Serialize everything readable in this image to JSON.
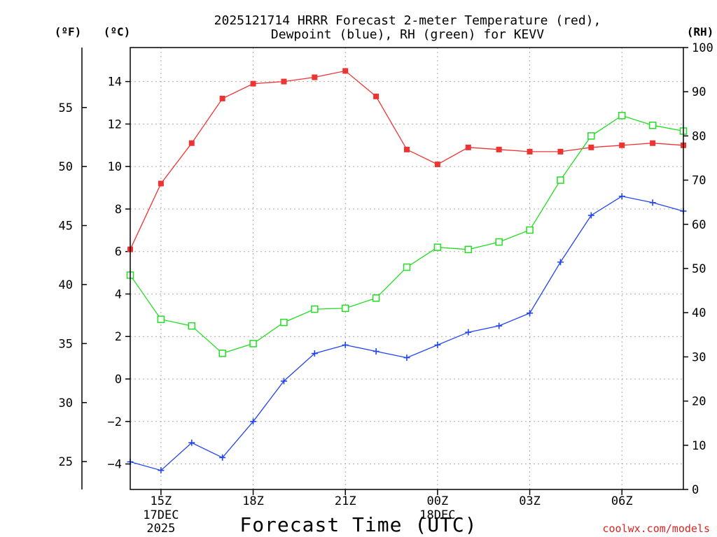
{
  "chart_data": {
    "type": "line",
    "title_line1": "2025121714 HRRR Forecast 2-meter Temperature (red),",
    "title_line2": "Dewpoint (blue), RH (green) for KEVV",
    "xlabel": "Forecast Time (UTC)",
    "watermark": "coolwx.com/models",
    "axis_labels": {
      "fahrenheit": "(ºF)",
      "celsius": "(ºC)",
      "rh": "(RH)"
    },
    "x_hours": [
      14,
      15,
      16,
      17,
      18,
      19,
      20,
      21,
      22,
      23,
      24,
      25,
      26,
      27,
      28,
      29,
      30,
      31,
      32
    ],
    "xlim": [
      14,
      32
    ],
    "x_ticks": [
      {
        "hour": 15,
        "label": "15Z",
        "sub1": "17DEC",
        "sub2": "2025"
      },
      {
        "hour": 18,
        "label": "18Z",
        "sub1": "",
        "sub2": ""
      },
      {
        "hour": 21,
        "label": "21Z",
        "sub1": "",
        "sub2": ""
      },
      {
        "hour": 24,
        "label": "00Z",
        "sub1": "18DEC",
        "sub2": ""
      },
      {
        "hour": 27,
        "label": "03Z",
        "sub1": "",
        "sub2": ""
      },
      {
        "hour": 30,
        "label": "06Z",
        "sub1": "",
        "sub2": ""
      }
    ],
    "ylim_c": [
      -5.2,
      15.6
    ],
    "y_ticks_c": [
      -4,
      -2,
      0,
      2,
      4,
      6,
      8,
      10,
      12,
      14
    ],
    "y_ticks_f": [
      25,
      30,
      35,
      40,
      45,
      50,
      55
    ],
    "ylim_rh": [
      0,
      100
    ],
    "y_ticks_rh": [
      0,
      10,
      20,
      30,
      40,
      50,
      60,
      70,
      80,
      90,
      100
    ],
    "series": [
      {
        "name": "Temperature",
        "unit": "C",
        "color": "#ee3333",
        "marker": "filled-square",
        "values": [
          6.1,
          9.2,
          11.1,
          13.2,
          13.9,
          14.0,
          14.2,
          14.5,
          13.3,
          10.8,
          10.1,
          10.9,
          10.8,
          10.7,
          10.7,
          10.9,
          11.0,
          11.1,
          11.0
        ]
      },
      {
        "name": "Dewpoint",
        "unit": "C",
        "color": "#2244ee",
        "marker": "plus",
        "values": [
          -3.9,
          -4.3,
          -3.0,
          -3.7,
          -2.0,
          -0.1,
          1.2,
          1.6,
          1.3,
          1.0,
          1.6,
          2.2,
          2.5,
          3.1,
          5.5,
          7.7,
          8.6,
          8.3,
          7.9
        ]
      },
      {
        "name": "RH",
        "unit": "%",
        "color": "#22dd22",
        "marker": "open-square",
        "values": [
          48.5,
          38.5,
          37.0,
          30.8,
          33.0,
          37.8,
          40.8,
          41.0,
          43.3,
          50.3,
          54.8,
          54.3,
          56.0,
          58.7,
          70.0,
          80.0,
          84.6,
          82.4,
          81.1
        ]
      }
    ]
  }
}
